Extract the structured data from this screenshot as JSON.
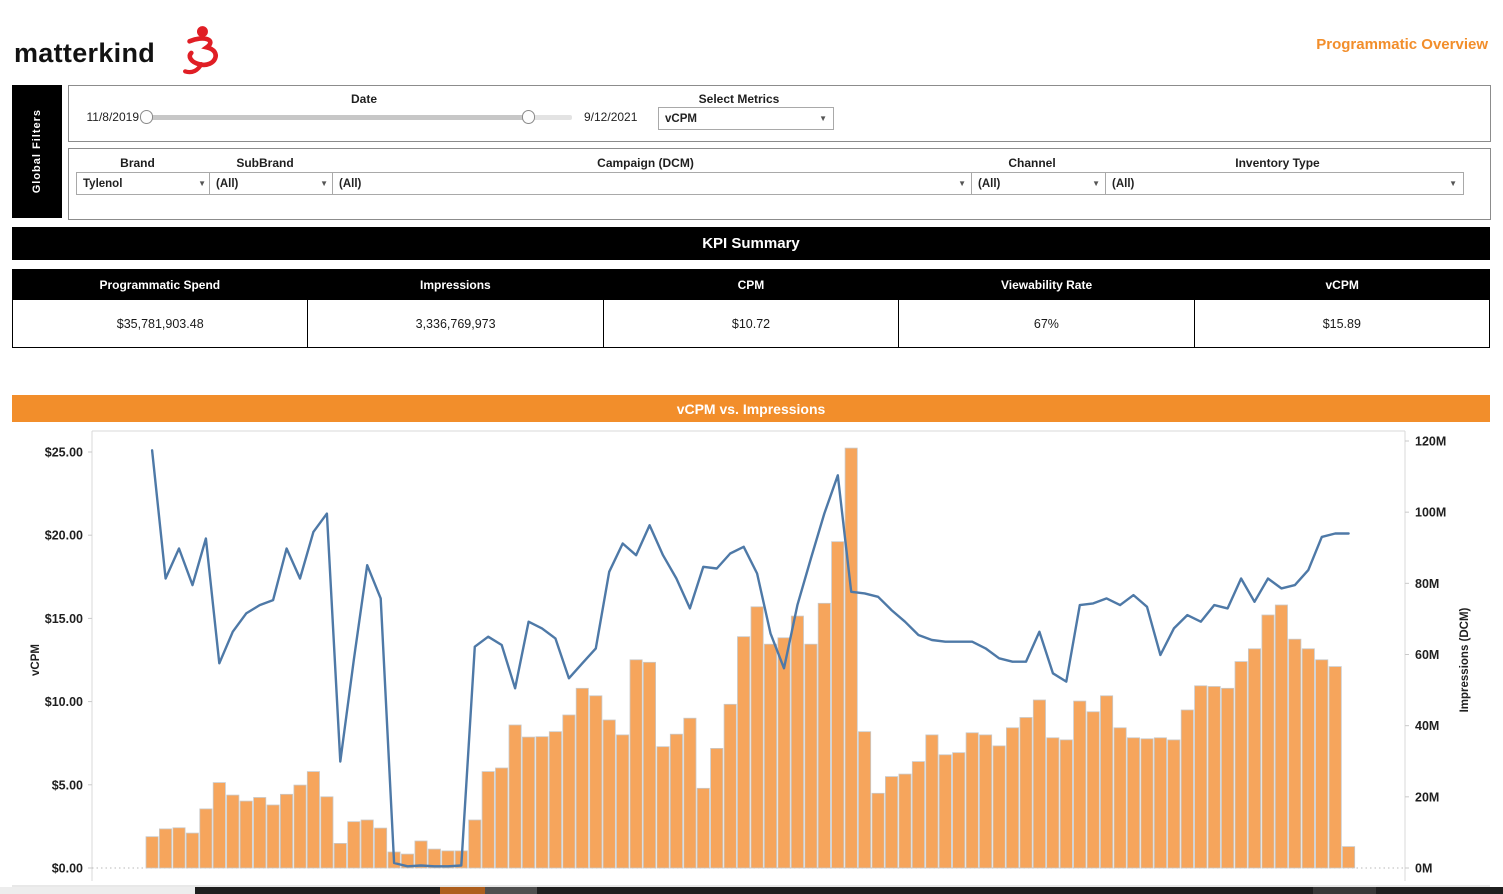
{
  "header": {
    "logo_text": "matterkind",
    "logo_mark": "j3-red-script-icon",
    "page_title": "Programmatic Overview"
  },
  "global_filters": {
    "tab_label": "Global Filters",
    "date_filter": {
      "label": "Date",
      "start": "11/8/2019",
      "end": "9/12/2021"
    },
    "select_metrics": {
      "label": "Select Metrics",
      "value": "vCPM"
    },
    "brand": {
      "label": "Brand",
      "value": "Tylenol"
    },
    "subbrand": {
      "label": "SubBrand",
      "value": "(All)"
    },
    "campaign": {
      "label": "Campaign (DCM)",
      "value": "(All)"
    },
    "channel": {
      "label": "Channel",
      "value": "(All)"
    },
    "inventory_type": {
      "label": "Inventory Type",
      "value": "(All)"
    }
  },
  "kpi_summary": {
    "title": "KPI Summary",
    "columns": [
      "Programmatic Spend",
      "Impressions",
      "CPM",
      "Viewability Rate",
      "vCPM"
    ],
    "values": [
      "$35,781,903.48",
      "3,336,769,973",
      "$10.72",
      "67%",
      "$15.89"
    ]
  },
  "chart_data": {
    "type": "bar",
    "title": "vCPM vs. Impressions",
    "x_description": "weekly points, x tick labels not visible in view",
    "x": [
      1,
      2,
      3,
      4,
      5,
      6,
      7,
      8,
      9,
      10,
      11,
      12,
      13,
      14,
      15,
      16,
      17,
      18,
      19,
      20,
      21,
      22,
      23,
      24,
      25,
      26,
      27,
      28,
      29,
      30,
      31,
      32,
      33,
      34,
      35,
      36,
      37,
      38,
      39,
      40,
      41,
      42,
      43,
      44,
      45,
      46,
      47,
      48,
      49,
      50,
      51,
      52,
      53,
      54,
      55,
      56,
      57,
      58,
      59,
      60,
      61,
      62,
      63,
      64,
      65,
      66,
      67,
      68,
      69,
      70,
      71,
      72,
      73,
      74,
      75,
      76,
      77,
      78,
      79,
      80,
      81,
      82,
      83,
      84,
      85,
      86,
      87,
      88,
      89,
      90
    ],
    "series": [
      {
        "name": "Impressions (DCM)",
        "type": "bar",
        "axis": "right",
        "unit": "M",
        "values": [
          8.8,
          11,
          11.3,
          9.8,
          16.6,
          24,
          20.5,
          18.8,
          19.8,
          17.7,
          20.7,
          23.3,
          27.1,
          20,
          6.9,
          13,
          13.5,
          11.2,
          4.5,
          3.9,
          7.6,
          5.3,
          4.8,
          4.8,
          13.5,
          27.1,
          28.1,
          40.2,
          36.8,
          36.9,
          38.3,
          43,
          50.5,
          48.4,
          41.6,
          37.4,
          58.5,
          57.8,
          34.1,
          37.6,
          42.1,
          22.4,
          33.6,
          46,
          65,
          73.4,
          62.9,
          64.7,
          70.8,
          62.9,
          74.4,
          91.7,
          118,
          38.3,
          21,
          25.7,
          26.4,
          29.9,
          37.4,
          31.8,
          32.4,
          38,
          37.4,
          34.3,
          39.4,
          42.3,
          47.2,
          36.6,
          36,
          46.9,
          43.9,
          48.4,
          39.4,
          36.6,
          36.3,
          36.6,
          36,
          44.4,
          51.2,
          51,
          50.5,
          58,
          61.6,
          71.1,
          73.9,
          64.3,
          61.6,
          58.5,
          56.6,
          6
        ]
      },
      {
        "name": "vCPM",
        "type": "line",
        "axis": "left",
        "unit": "$",
        "values": [
          25.1,
          17.4,
          19.2,
          17,
          19.8,
          12.3,
          14.2,
          15.3,
          15.8,
          16.1,
          19.2,
          17.4,
          20.2,
          21.3,
          6.4,
          12.5,
          18.2,
          16.2,
          0.3,
          0.1,
          0.15,
          0.1,
          0.1,
          0.15,
          13.3,
          13.9,
          13.4,
          10.8,
          14.8,
          14.4,
          13.8,
          11.4,
          12.3,
          13.2,
          17.8,
          19.5,
          18.8,
          20.6,
          18.8,
          17.4,
          15.6,
          18.1,
          18,
          18.9,
          19.3,
          17.7,
          14.1,
          12,
          15.8,
          18.6,
          21.3,
          23.6,
          16.6,
          16.5,
          16.3,
          15.5,
          14.8,
          14,
          13.7,
          13.6,
          13.6,
          13.6,
          13.2,
          12.6,
          12.4,
          12.4,
          14.2,
          11.7,
          11.2,
          15.8,
          15.9,
          16.2,
          15.8,
          16.4,
          15.7,
          12.8,
          14.4,
          15.2,
          14.8,
          15.8,
          15.6,
          17.4,
          16,
          17.4,
          16.8,
          17,
          17.9,
          19.9,
          20.1,
          20.1
        ]
      }
    ],
    "ylabel_left": "vCPM",
    "ylabel_right": "Impressions (DCM)",
    "ylim_left": [
      0,
      25
    ],
    "yticks_left": [
      "$0.00",
      "$5.00",
      "$10.00",
      "$15.00",
      "$20.00",
      "$25.00"
    ],
    "ylim_right_M": [
      0,
      120
    ],
    "yticks_right": [
      "0M",
      "20M",
      "40M",
      "60M",
      "80M",
      "100M",
      "120M"
    ],
    "grid": "off, dotted zero baseline only",
    "legend_position": "none"
  },
  "colors": {
    "accent_orange": "#F28E2B",
    "bar_fill": "#F6A55C",
    "bar_stroke": "#c9c9c9",
    "line_blue": "#4E79A7",
    "logo_red": "#E01E25",
    "black": "#000000",
    "scroll_thumb_orange": "#AD5F1E"
  }
}
